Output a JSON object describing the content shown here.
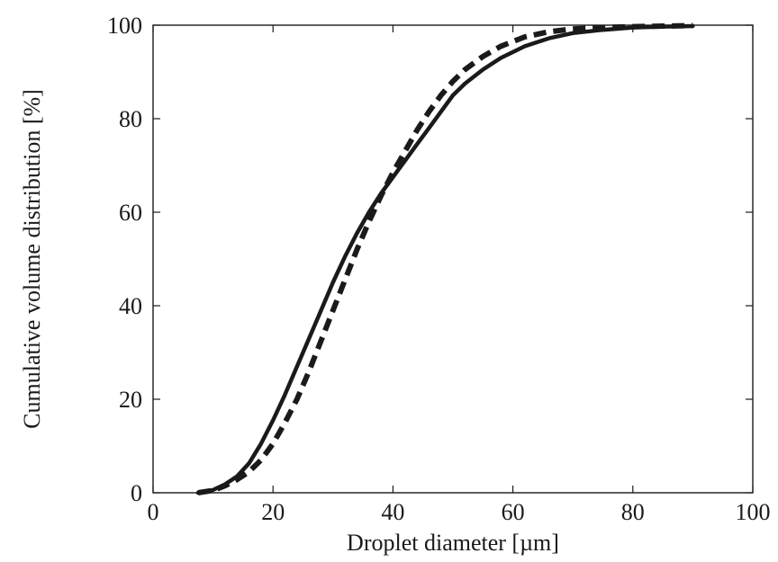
{
  "chart_data": {
    "type": "line",
    "xlabel": "Droplet diameter [µm]",
    "ylabel": "Cumulative volume distribution [%]",
    "xlim": [
      0,
      100
    ],
    "ylim": [
      0,
      100
    ],
    "x_ticks": [
      "0",
      "20",
      "40",
      "60",
      "80",
      "100"
    ],
    "y_ticks": [
      "0",
      "20",
      "40",
      "60",
      "80",
      "100"
    ],
    "grid": false,
    "legend": "none",
    "series": [
      {
        "style": "solid",
        "color": "#1a1a1a",
        "x": [
          7.5,
          10,
          12,
          14,
          16,
          18,
          20,
          22,
          24,
          26,
          28,
          30,
          32,
          34,
          36,
          38,
          40,
          42,
          44,
          46,
          48,
          50,
          52,
          55,
          58,
          62,
          66,
          70,
          75,
          80,
          85,
          90
        ],
        "y": [
          0,
          0.6,
          1.8,
          3.5,
          6.3,
          10.5,
          15.5,
          21,
          27,
          33,
          39,
          45,
          50.5,
          55.5,
          60,
          64,
          67.5,
          71,
          74.5,
          78,
          81.5,
          85,
          87.5,
          90.5,
          93,
          95.5,
          97.2,
          98.3,
          99,
          99.5,
          99.7,
          99.8
        ]
      },
      {
        "style": "dashed",
        "color": "#1a1a1a",
        "x": [
          7.5,
          10,
          12,
          14,
          16,
          18,
          20,
          22,
          24,
          26,
          28,
          30,
          32,
          34,
          36,
          38,
          40,
          42,
          44,
          46,
          48,
          50,
          52,
          55,
          58,
          62,
          66,
          70,
          75,
          80,
          85,
          90
        ],
        "y": [
          0,
          0.5,
          1.5,
          2.8,
          4.5,
          7,
          10.5,
          15,
          20,
          26,
          32.5,
          39,
          45.5,
          52,
          58,
          63.5,
          68.5,
          73,
          77.5,
          81.5,
          85,
          88,
          90.5,
          93.3,
          95.5,
          97.5,
          98.6,
          99.2,
          99.5,
          99.7,
          99.8,
          99.9
        ]
      }
    ]
  }
}
